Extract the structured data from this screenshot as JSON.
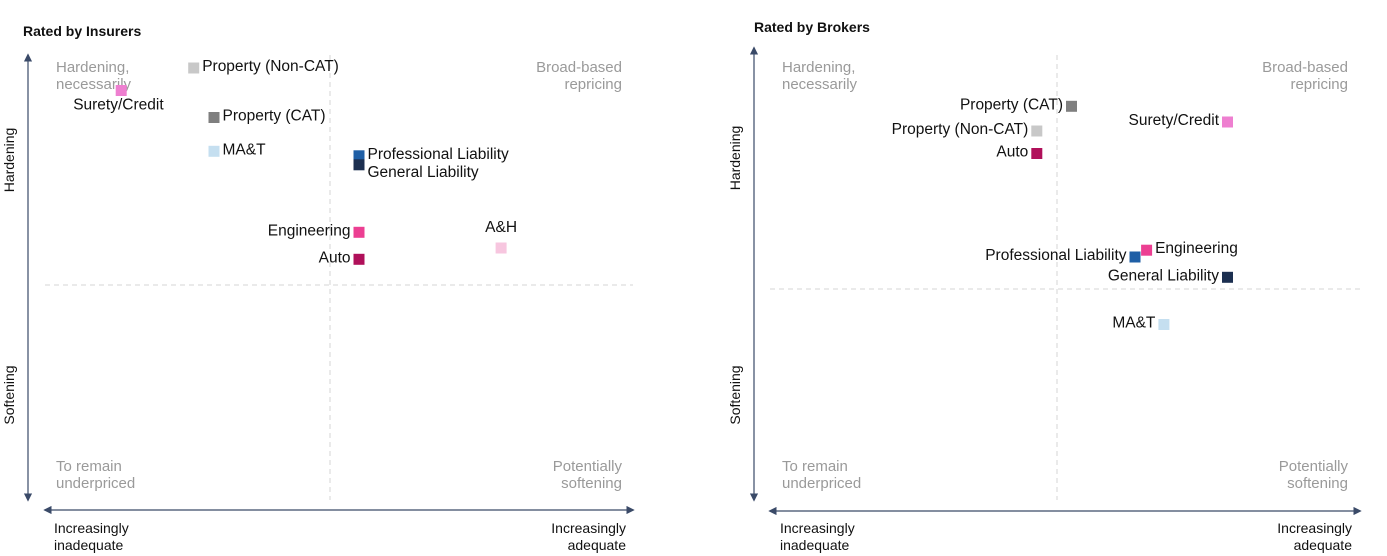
{
  "chart_data": [
    {
      "type": "scatter",
      "title": "Rated by Insurers",
      "ylabel_top": "Hardening",
      "ylabel_bottom": "Softening",
      "xlabel_left": [
        "Increasingly",
        "inadequate"
      ],
      "xlabel_right": [
        "Increasingly",
        "adequate"
      ],
      "quadrants": {
        "top_left": [
          "Hardening,",
          "necessarily"
        ],
        "top_right": [
          "Broad-based",
          "repricing"
        ],
        "bottom_left": [
          "To remain",
          "underpriced"
        ],
        "bottom_right": [
          "Potentially",
          "softening"
        ]
      },
      "xlim": [
        -1,
        1
      ],
      "ylim": [
        -1,
        1
      ],
      "points": [
        {
          "label": "Property (Non-CAT)",
          "x": -0.47,
          "y": 0.92,
          "color": "#c8c8c8",
          "label_side": "right"
        },
        {
          "label": "Surety/Credit",
          "x": -0.72,
          "y": 0.82,
          "color": "#ee7fd0",
          "label_side": "below"
        },
        {
          "label": "Property (CAT)",
          "x": -0.4,
          "y": 0.7,
          "color": "#7f7f7f",
          "label_side": "right"
        },
        {
          "label": "MA&T",
          "x": -0.4,
          "y": 0.55,
          "color": "#c5dff0",
          "label_side": "right"
        },
        {
          "label": "Professional Liability",
          "x": 0.1,
          "y": 0.53,
          "color": "#1f5fa6",
          "label_side": "right"
        },
        {
          "label": "General Liability",
          "x": 0.1,
          "y": 0.49,
          "color": "#1c2f50",
          "label_side": "right-below"
        },
        {
          "label": "Engineering",
          "x": 0.1,
          "y": 0.19,
          "color": "#ec3f92",
          "label_side": "left"
        },
        {
          "label": "Auto",
          "x": 0.1,
          "y": 0.07,
          "color": "#b0105a",
          "label_side": "left"
        },
        {
          "label": "A&H",
          "x": 0.59,
          "y": 0.12,
          "color": "#f7c6df",
          "label_side": "above"
        }
      ]
    },
    {
      "type": "scatter",
      "title": "Rated by Brokers",
      "ylabel_top": "Hardening",
      "ylabel_bottom": "Softening",
      "xlabel_left": [
        "Increasingly",
        "inadequate"
      ],
      "xlabel_right": [
        "Increasingly",
        "adequate"
      ],
      "quadrants": {
        "top_left": [
          "Hardening,",
          "necessarily"
        ],
        "top_right": [
          "Broad-based",
          "repricing"
        ],
        "bottom_left": [
          "To remain",
          "underpriced"
        ],
        "bottom_right": [
          "Potentially",
          "softening"
        ]
      },
      "xlim": [
        -1,
        1
      ],
      "ylim": [
        -1,
        1
      ],
      "points": [
        {
          "label": "Property (CAT)",
          "x": 0.05,
          "y": 0.75,
          "color": "#7f7f7f",
          "label_side": "left"
        },
        {
          "label": "Surety/Credit",
          "x": 0.59,
          "y": 0.68,
          "color": "#ee7fd0",
          "label_side": "left"
        },
        {
          "label": "Property (Non-CAT)",
          "x": -0.07,
          "y": 0.64,
          "color": "#c8c8c8",
          "label_side": "left"
        },
        {
          "label": "Auto",
          "x": -0.07,
          "y": 0.54,
          "color": "#b0105a",
          "label_side": "left"
        },
        {
          "label": "Engineering",
          "x": 0.31,
          "y": 0.11,
          "color": "#ec3f92",
          "label_side": "right"
        },
        {
          "label": "Professional Liability",
          "x": 0.27,
          "y": 0.08,
          "color": "#1f5fa6",
          "label_side": "left"
        },
        {
          "label": "General Liability",
          "x": 0.59,
          "y": -0.01,
          "color": "#1c2f50",
          "label_side": "left"
        },
        {
          "label": "MA&T",
          "x": 0.37,
          "y": -0.22,
          "color": "#c5dff0",
          "label_side": "left"
        }
      ]
    }
  ]
}
